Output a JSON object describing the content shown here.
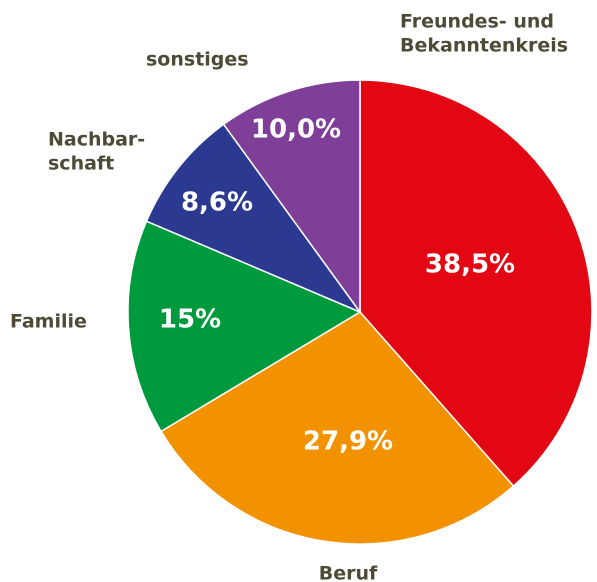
{
  "chart_data": {
    "type": "pie",
    "categories": [
      [
        "Freundes- und",
        "Bekanntenkreis"
      ],
      [
        "Beruf"
      ],
      [
        "Familie"
      ],
      [
        "Nachbar-",
        "schaft"
      ],
      [
        "sonstiges"
      ]
    ],
    "values": [
      38.5,
      27.9,
      15,
      8.6,
      10.0
    ],
    "value_labels": [
      "38,5%",
      "27,9%",
      "15%",
      "8,6%",
      "10,0%"
    ],
    "colors": [
      "#e30613",
      "#f39200",
      "#009a3e",
      "#2b3990",
      "#7f3f98"
    ]
  }
}
